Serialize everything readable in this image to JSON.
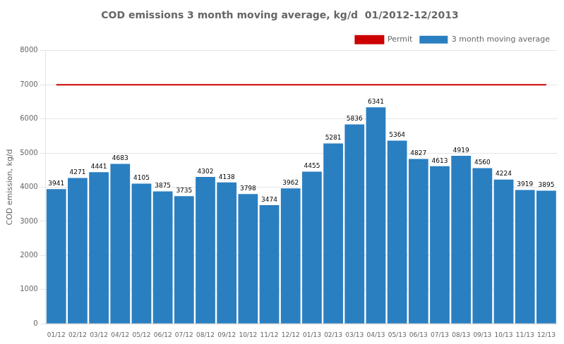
{
  "chart_data": {
    "type": "bar",
    "title": "COD emissions 3 month moving average, kg/d  01/2012-12/2013",
    "ylabel": "COD emission, kg/d",
    "categories": [
      "01/12",
      "02/12",
      "03/12",
      "04/12",
      "05/12",
      "06/12",
      "07/12",
      "08/12",
      "09/12",
      "10/12",
      "11/12",
      "12/12",
      "01/13",
      "02/13",
      "03/13",
      "04/13",
      "05/13",
      "06/13",
      "07/13",
      "08/13",
      "09/13",
      "10/13",
      "11/13",
      "12/13"
    ],
    "series": [
      {
        "name": "3 month moving average",
        "type": "bar",
        "color": "#2a7fc1",
        "data_labels": true,
        "values": [
          3941,
          4271,
          4441,
          4683,
          4105,
          3875,
          3735,
          4302,
          4138,
          3798,
          3474,
          3962,
          4455,
          5281,
          5836,
          6341,
          5364,
          4827,
          4613,
          4919,
          4560,
          4224,
          3919,
          3895
        ]
      },
      {
        "name": "Permit",
        "type": "line",
        "color": "#cc0000",
        "values": [
          7000,
          7000,
          7000,
          7000,
          7000,
          7000,
          7000,
          7000,
          7000,
          7000,
          7000,
          7000,
          7000,
          7000,
          7000,
          7000,
          7000,
          7000,
          7000,
          7000,
          7000,
          7000,
          7000,
          7000
        ]
      }
    ],
    "ylim": [
      0,
      8000
    ],
    "yticks": [
      0,
      1000,
      2000,
      3000,
      4000,
      5000,
      6000,
      7000,
      8000
    ],
    "grid": true,
    "legend": "upper right"
  }
}
